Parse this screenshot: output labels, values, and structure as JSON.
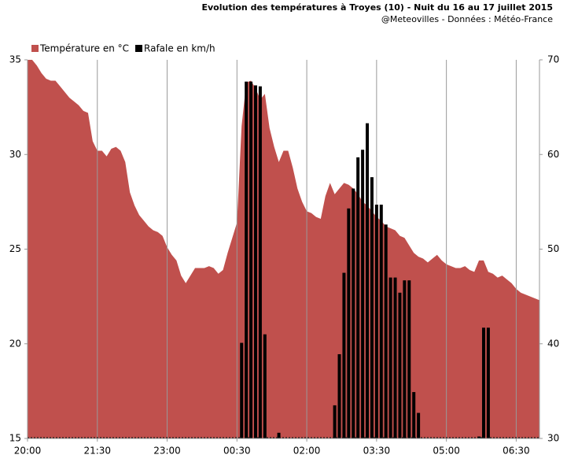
{
  "chart_data": {
    "type": "area_bar",
    "title": "Evolution des températures à Troyes (10) - Nuit du 16 au 17 juillet 2015",
    "subtitle": "@Meteovilles - Données : Météo-France",
    "categories": [
      "20:00",
      null,
      null,
      null,
      null,
      null,
      null,
      null,
      null,
      null,
      null,
      null,
      null,
      null,
      null,
      "21:30",
      null,
      null,
      null,
      null,
      null,
      null,
      null,
      null,
      null,
      null,
      null,
      null,
      null,
      null,
      "23:00",
      null,
      null,
      null,
      null,
      null,
      null,
      null,
      null,
      null,
      null,
      null,
      null,
      null,
      null,
      "00:30",
      null,
      null,
      null,
      null,
      null,
      null,
      null,
      null,
      null,
      null,
      null,
      null,
      null,
      null,
      "02:00",
      null,
      null,
      null,
      null,
      null,
      null,
      null,
      null,
      null,
      null,
      null,
      null,
      null,
      null,
      "03:30",
      null,
      null,
      null,
      null,
      null,
      null,
      null,
      null,
      null,
      null,
      null,
      null,
      null,
      null,
      "05:00",
      null,
      null,
      null,
      null,
      null,
      null,
      null,
      null,
      null,
      null,
      null,
      null,
      null,
      null,
      "06:30",
      null,
      null,
      null,
      null,
      null
    ],
    "series": [
      {
        "name": "Température en °C",
        "color": "#c0504d",
        "axis": "y",
        "values": [
          35.0,
          35.0,
          34.7,
          34.3,
          34.0,
          33.9,
          33.9,
          33.6,
          33.3,
          33.0,
          32.8,
          32.6,
          32.3,
          32.2,
          30.7,
          30.2,
          30.2,
          29.9,
          30.3,
          30.4,
          30.2,
          29.6,
          28.0,
          27.3,
          26.8,
          26.5,
          26.2,
          26.0,
          25.9,
          25.7,
          25.1,
          24.7,
          24.4,
          23.6,
          23.2,
          23.6,
          24.0,
          24.0,
          24.0,
          24.1,
          24.0,
          23.7,
          23.9,
          24.8,
          25.6,
          26.4,
          31.5,
          33.8,
          33.9,
          33.5,
          32.9,
          33.2,
          31.4,
          30.4,
          29.6,
          30.2,
          30.2,
          29.3,
          28.2,
          27.5,
          27.0,
          26.9,
          26.7,
          26.6,
          27.8,
          28.5,
          27.9,
          28.2,
          28.5,
          28.4,
          28.2,
          27.9,
          27.5,
          27.3,
          27.0,
          26.7,
          26.5,
          26.2,
          26.1,
          26.0,
          25.7,
          25.6,
          25.2,
          24.8,
          24.6,
          24.5,
          24.3,
          24.5,
          24.7,
          24.4,
          24.2,
          24.1,
          24.0,
          24.0,
          24.1,
          23.9,
          23.8,
          24.4,
          24.4,
          23.8,
          23.7,
          23.5,
          23.6,
          23.4,
          23.2,
          22.9,
          22.7,
          22.6,
          22.5,
          22.4,
          22.3
        ]
      },
      {
        "name": "Rafale en km/h",
        "color": "#000000",
        "axis": "y2",
        "values": [
          null,
          null,
          null,
          null,
          null,
          null,
          null,
          null,
          null,
          null,
          null,
          null,
          null,
          null,
          null,
          null,
          null,
          null,
          null,
          null,
          null,
          null,
          null,
          null,
          null,
          null,
          null,
          null,
          null,
          null,
          null,
          null,
          null,
          null,
          null,
          null,
          null,
          null,
          null,
          null,
          null,
          null,
          null,
          null,
          null,
          null,
          40.1,
          67.7,
          67.7,
          67.3,
          67.2,
          41.0,
          null,
          null,
          30.6,
          null,
          null,
          null,
          null,
          null,
          null,
          null,
          null,
          null,
          null,
          null,
          33.5,
          38.9,
          47.5,
          54.3,
          56.4,
          59.7,
          60.5,
          63.3,
          57.6,
          54.7,
          54.7,
          52.6,
          47.0,
          47.0,
          45.4,
          46.7,
          46.7,
          34.9,
          32.7,
          null,
          null,
          null,
          null,
          null,
          null,
          null,
          null,
          null,
          null,
          null,
          null,
          30.2,
          41.7,
          41.7,
          null,
          null,
          null,
          null,
          null,
          null,
          null,
          null,
          null,
          null,
          null
        ]
      }
    ],
    "ylim": [
      15,
      35
    ],
    "yticks": [
      15,
      20,
      25,
      30,
      35
    ],
    "y2lim": [
      30,
      70
    ],
    "y2ticks": [
      30,
      40,
      50,
      60,
      70
    ],
    "grid": true,
    "legend": "top-left"
  }
}
